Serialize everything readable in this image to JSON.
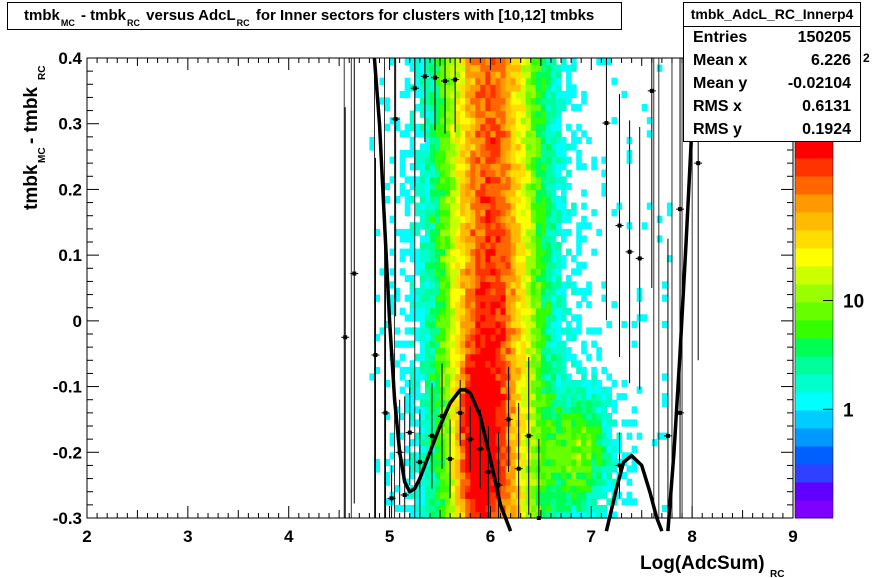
{
  "title": {
    "parts": [
      "tmbk",
      "MC",
      " - tmbk",
      "RC",
      " versus AdcL",
      "RC",
      " for Inner sectors for clusters with [10,12] tmbks"
    ]
  },
  "stats": {
    "name": "tmbk_AdcL_RC_Innerp4",
    "rows": [
      {
        "key": "Entries",
        "value": "150205"
      },
      {
        "key": "Mean x",
        "value": "6.226"
      },
      {
        "key": "Mean y",
        "value": "-0.02104"
      },
      {
        "key": "RMS x",
        "value": "0.6131"
      },
      {
        "key": "RMS y",
        "value": "0.1924"
      }
    ]
  },
  "chart_data": {
    "type": "heatmap",
    "xlabel_main": "Log(AdcSum)",
    "xlabel_sub": "RC",
    "ylabel_main": "tmbk",
    "ylabel_sub1": "MC",
    "ylabel_mid": " - tmbk",
    "ylabel_sub2": "RC",
    "xlim": [
      2,
      9
    ],
    "ylim": [
      -0.3,
      0.4
    ],
    "x_ticks": [
      2,
      3,
      4,
      5,
      6,
      7,
      8,
      9
    ],
    "y_ticks": [
      -0.3,
      -0.2,
      -0.1,
      0,
      0.1,
      0.2,
      0.3,
      0.4
    ],
    "x_tick_labels": [
      "2",
      "3",
      "4",
      "5",
      "6",
      "7",
      "8",
      "9"
    ],
    "y_tick_labels": [
      "-0.3",
      "-0.2",
      "-0.1",
      "0",
      "0.1",
      "0.2",
      "0.3",
      "0.4"
    ],
    "colorbar": {
      "scale": "log",
      "labels": [
        "1",
        "10"
      ],
      "label_values": [
        1,
        10
      ],
      "exponent_fragment": "2",
      "range": [
        0.1,
        300
      ],
      "colors": [
        "#8000ff",
        "#6000ff",
        "#3040ff",
        "#0060ff",
        "#0099ff",
        "#00ccff",
        "#00ffff",
        "#00ffcc",
        "#00ff99",
        "#00ff55",
        "#33ff00",
        "#66ff00",
        "#99ff00",
        "#ccff00",
        "#ffff00",
        "#ffdd00",
        "#ffbb00",
        "#ff9900",
        "#ff6600",
        "#ff3300",
        "#ff0000"
      ]
    },
    "profile_points": [
      {
        "x": 4.56,
        "y": -0.025,
        "ey": 0.35
      },
      {
        "x": 4.65,
        "y": 0.072,
        "ey": 0.35
      },
      {
        "x": 4.86,
        "y": -0.052,
        "ey": 0.3
      },
      {
        "x": 4.96,
        "y": -0.14,
        "ey": 0.3
      },
      {
        "x": 5.06,
        "y": 0.307,
        "ey": 0.3
      },
      {
        "x": 5.15,
        "y": -0.265,
        "ey": 0.15
      },
      {
        "x": 5.25,
        "y": 0.354,
        "ey": 0.15
      },
      {
        "x": 5.35,
        "y": 0.372,
        "ey": 0.1
      },
      {
        "x": 5.45,
        "y": 0.37,
        "ey": 0.08
      },
      {
        "x": 5.55,
        "y": 0.365,
        "ey": 0.08
      },
      {
        "x": 5.65,
        "y": 0.367,
        "ey": 0.08
      },
      {
        "x": 5.02,
        "y": -0.27,
        "ey": 0.05
      },
      {
        "x": 5.1,
        "y": -0.2,
        "ey": 0.08
      },
      {
        "x": 5.2,
        "y": -0.17,
        "ey": 0.08
      },
      {
        "x": 5.3,
        "y": -0.215,
        "ey": 0.08
      },
      {
        "x": 5.42,
        "y": -0.175,
        "ey": 0.08
      },
      {
        "x": 5.52,
        "y": -0.145,
        "ey": 0.08
      },
      {
        "x": 5.6,
        "y": -0.21,
        "ey": 0.06
      },
      {
        "x": 5.7,
        "y": -0.14,
        "ey": 0.05
      },
      {
        "x": 5.8,
        "y": -0.18,
        "ey": 0.05
      },
      {
        "x": 5.9,
        "y": -0.195,
        "ey": 0.06
      },
      {
        "x": 5.98,
        "y": -0.23,
        "ey": 0.07
      },
      {
        "x": 6.08,
        "y": -0.25,
        "ey": 0.08
      },
      {
        "x": 6.18,
        "y": -0.15,
        "ey": 0.08
      },
      {
        "x": 6.28,
        "y": -0.225,
        "ey": 0.1
      },
      {
        "x": 6.38,
        "y": -0.175,
        "ey": 0.12
      },
      {
        "x": 6.48,
        "y": -0.3,
        "ey": 0.12
      },
      {
        "x": 7.15,
        "y": 0.301,
        "ey": 0.3
      },
      {
        "x": 7.28,
        "y": 0.145,
        "ey": 0.2
      },
      {
        "x": 7.38,
        "y": 0.105,
        "ey": 0.2
      },
      {
        "x": 7.48,
        "y": 0.095,
        "ey": 0.2
      },
      {
        "x": 7.28,
        "y": -0.22,
        "ey": 0.05
      },
      {
        "x": 7.6,
        "y": 0.35,
        "ey": 0.3
      },
      {
        "x": 7.76,
        "y": -0.175,
        "ey": 0.3
      },
      {
        "x": 7.88,
        "y": -0.14,
        "ey": 0.3
      },
      {
        "x": 7.88,
        "y": 0.17,
        "ey": 0.3
      },
      {
        "x": 8.06,
        "y": 0.24,
        "ey": 0.3
      }
    ],
    "fit_curve": [
      [
        4.85,
        0.4
      ],
      [
        4.9,
        0.3
      ],
      [
        4.95,
        0.15
      ],
      [
        5.0,
        0.0
      ],
      [
        5.05,
        -0.12
      ],
      [
        5.1,
        -0.2
      ],
      [
        5.15,
        -0.245
      ],
      [
        5.2,
        -0.26
      ],
      [
        5.25,
        -0.255
      ],
      [
        5.3,
        -0.24
      ],
      [
        5.4,
        -0.2
      ],
      [
        5.5,
        -0.16
      ],
      [
        5.6,
        -0.125
      ],
      [
        5.7,
        -0.105
      ],
      [
        5.75,
        -0.105
      ],
      [
        5.8,
        -0.11
      ],
      [
        5.9,
        -0.145
      ],
      [
        6.0,
        -0.21
      ],
      [
        6.1,
        -0.28
      ],
      [
        6.2,
        -0.32
      ],
      [
        7.15,
        -0.32
      ],
      [
        7.25,
        -0.255
      ],
      [
        7.32,
        -0.215
      ],
      [
        7.4,
        -0.205
      ],
      [
        7.5,
        -0.22
      ],
      [
        7.58,
        -0.26
      ],
      [
        7.65,
        -0.3
      ],
      [
        7.7,
        -0.32
      ],
      [
        7.76,
        -0.32
      ],
      [
        7.82,
        -0.2
      ],
      [
        7.88,
        -0.05
      ],
      [
        7.94,
        0.12
      ],
      [
        8.0,
        0.3
      ],
      [
        8.03,
        0.4
      ]
    ]
  }
}
